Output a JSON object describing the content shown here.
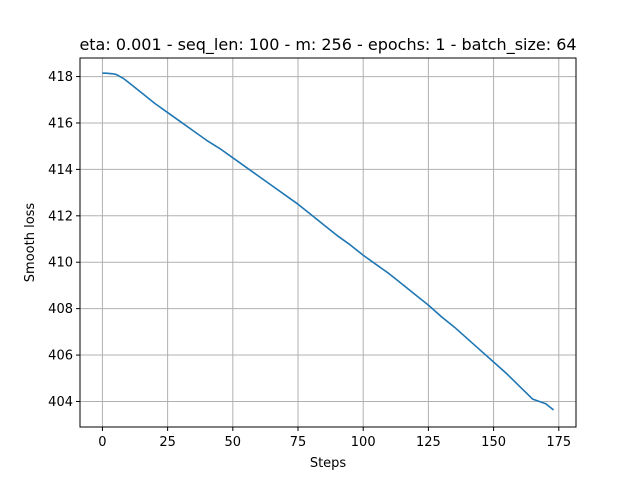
{
  "chart_data": {
    "type": "line",
    "title": "eta: 0.001 - seq_len: 100 - m: 256 - epochs: 1 - batch_size: 64",
    "xlabel": "Steps",
    "ylabel": "Smooth loss",
    "xlim": [
      -8.6,
      181.6
    ],
    "ylim": [
      402.9,
      418.8
    ],
    "xticks": [
      0,
      25,
      50,
      75,
      100,
      125,
      150,
      175
    ],
    "yticks": [
      404,
      406,
      408,
      410,
      412,
      414,
      416,
      418
    ],
    "grid": true,
    "line_color": "#1f77b4",
    "series": [
      {
        "x": [
          0,
          2,
          4,
          5,
          6,
          8,
          10,
          15,
          20,
          25,
          30,
          35,
          40,
          45,
          50,
          55,
          60,
          65,
          70,
          75,
          80,
          85,
          90,
          95,
          100,
          105,
          110,
          115,
          120,
          125,
          130,
          135,
          140,
          145,
          150,
          155,
          160,
          165,
          170,
          173
        ],
        "y": [
          418.15,
          418.14,
          418.12,
          418.1,
          418.05,
          417.92,
          417.75,
          417.3,
          416.85,
          416.45,
          416.05,
          415.65,
          415.25,
          414.9,
          414.5,
          414.1,
          413.7,
          413.3,
          412.9,
          412.5,
          412.05,
          411.6,
          411.15,
          410.75,
          410.3,
          409.9,
          409.5,
          409.05,
          408.6,
          408.15,
          407.65,
          407.2,
          406.7,
          406.2,
          405.7,
          405.2,
          404.65,
          404.1,
          403.9,
          403.63
        ]
      }
    ]
  }
}
